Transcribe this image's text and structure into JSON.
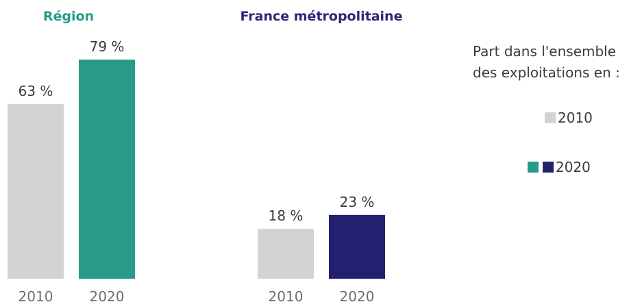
{
  "colors": {
    "region_2010": "#d3d3d3",
    "region_2020": "#279b87",
    "france_2010": "#d3d3d3",
    "france_2020": "#242070",
    "region_title": "#279b87",
    "france_title": "#2c2878"
  },
  "legend": {
    "title_line1": "Part dans l'ensemble",
    "title_line2": "des exploitations en :",
    "entry_2010": "2010",
    "entry_2020": "2020"
  },
  "chart_data": {
    "type": "bar",
    "categories": [
      "2010",
      "2020"
    ],
    "value_unit": "%",
    "ylim": [
      0,
      100
    ],
    "grid": false,
    "legend_position": "right",
    "groups": [
      {
        "title": "Région",
        "values": [
          63,
          79
        ],
        "labels": [
          "63 %",
          "79 %"
        ]
      },
      {
        "title": "France métropolitaine",
        "values": [
          18,
          23
        ],
        "labels": [
          "18 %",
          "23 %"
        ]
      }
    ]
  }
}
